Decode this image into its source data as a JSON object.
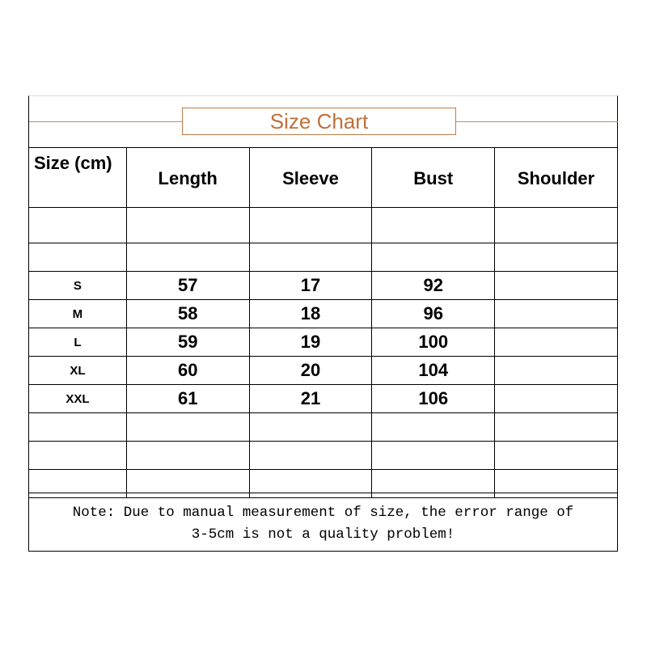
{
  "title": "Size Chart",
  "accent_color": "#c0703a",
  "headers": [
    "Size  (cm)",
    "Length",
    "Sleeve",
    "Bust",
    "Shoulder"
  ],
  "rows": [
    [
      "S",
      "57",
      "17",
      "92",
      ""
    ],
    [
      "M",
      "58",
      "18",
      "96",
      ""
    ],
    [
      "L",
      "59",
      "19",
      "100",
      ""
    ],
    [
      "XL",
      "60",
      "20",
      "104",
      ""
    ],
    [
      "XXL",
      "61",
      "21",
      "106",
      ""
    ]
  ],
  "note_line1": "Note: Due to manual measurement of size, the error range of",
  "note_line2": "3-5cm is not a quality problem!"
}
